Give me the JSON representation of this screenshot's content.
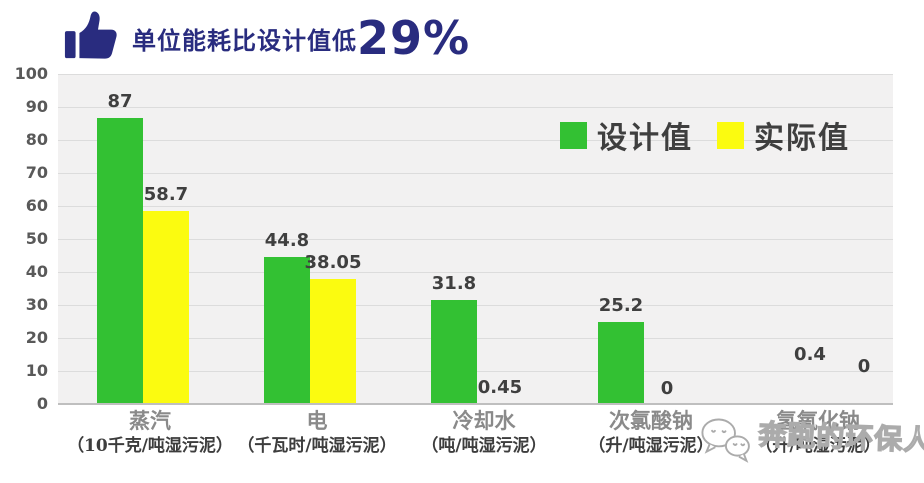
{
  "header": {
    "icon": "thumbs-up-icon",
    "title_prefix": "单位能耗比设计值低",
    "title_highlight": "29%"
  },
  "chart_data": {
    "type": "bar",
    "title": "单位能耗比设计值低29%",
    "categories": [
      "蒸汽",
      "电",
      "冷却水",
      "次氯酸钠",
      "氢氧化钠"
    ],
    "category_units": [
      "（10千克/吨湿污泥）",
      "（千瓦时/吨湿污泥）",
      "（吨/吨湿污泥）",
      "（升/吨湿污泥）",
      "（升/吨湿污泥）"
    ],
    "series": [
      {
        "name": "设计值",
        "color": "#33c133",
        "values": [
          87,
          44.8,
          31.8,
          25.2,
          0.4
        ]
      },
      {
        "name": "实际值",
        "color": "#fbfb10",
        "values": [
          58.7,
          38.05,
          0.45,
          0,
          0
        ]
      }
    ],
    "value_labels": [
      [
        "87",
        "44.8",
        "31.8",
        "25.2",
        "0.4"
      ],
      [
        "58.7",
        "38.05",
        "0.45",
        "0",
        "0"
      ]
    ],
    "ylim": [
      0,
      100
    ],
    "ytick_step": 10,
    "grid": true,
    "legend_position": "top-right",
    "layout_hints": {
      "label_dx": [
        [
          0,
          0,
          0,
          0,
          22
        ],
        [
          0,
          0,
          0,
          0,
          30
        ]
      ],
      "label_dy": [
        [
          0,
          0,
          0,
          0,
          -33
        ],
        [
          0,
          0,
          0,
          0,
          -22
        ]
      ]
    }
  },
  "colors": {
    "title": "#292c7f",
    "plot_bg": "#f2f1f1",
    "grid": "#dcdcdc",
    "axis_line": "#bfbfbf",
    "tick_text": "#595959",
    "value_text": "#3f3f3f",
    "category_name": "#8a8a8a",
    "category_unit": "#3d3d3d",
    "watermark_outline": "#ababab"
  },
  "watermark": {
    "logo": "chat-bubbles-icon",
    "text": "奔跑的环保人"
  }
}
